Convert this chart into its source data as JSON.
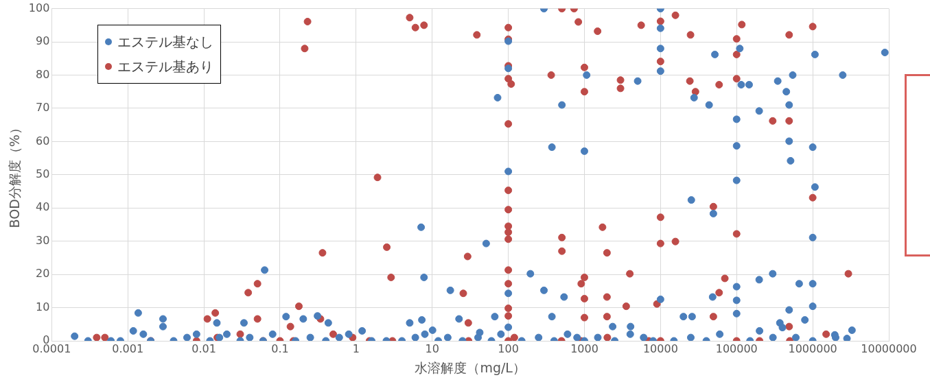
{
  "chart_data": {
    "type": "scatter",
    "xlabel": "水溶解度（mg/L）",
    "ylabel": "BOD分解度（%）",
    "log": "x",
    "grid": true,
    "legend": "top left",
    "marker": "circle",
    "xlim": [
      0.0001,
      10000000
    ],
    "xticks": [
      0.0001,
      0.001,
      0.01,
      0.1,
      1,
      10,
      100,
      1000,
      10000,
      100000,
      1000000,
      10000000
    ],
    "ylim": [
      0,
      100
    ],
    "yticks": [
      0,
      10,
      20,
      30,
      40,
      50,
      60,
      70,
      80,
      90,
      100
    ],
    "series": [
      {
        "name": "エステル基なし",
        "color": "#4a7ebb",
        "x": [
          0.0002,
          0.00118,
          0.00137,
          0.0029,
          0.0029,
          0.0148,
          0.0336,
          0.0628,
          0.12,
          0.202,
          0.311,
          0.431,
          100,
          100,
          100,
          100,
          100,
          294,
          10000,
          10000,
          10000,
          10000,
          1070,
          5010,
          72.3,
          506,
          374,
          1000,
          7.15,
          51.2,
          7.8,
          17.3,
          195,
          294,
          540,
          10000,
          5.06,
          7.31,
          22.5,
          66.4,
          374,
          2350,
          4040,
          10.1,
          42.1,
          51800,
          110000,
          1070000,
          8870000,
          546000,
          2480000,
          115000,
          146000,
          347000,
          450000,
          27600,
          43500,
          490000,
          198000,
          100000,
          100000,
          490000,
          1000000,
          512000,
          100000,
          1070000,
          25400,
          49500,
          1000000,
          198000,
          298000,
          664000,
          1000000,
          100000,
          100000,
          48400,
          1000000,
          490000,
          100000,
          20000,
          26000,
          789000,
          370000,
          3280000,
          1950000,
          2820000,
          0.0003,
          0.0006,
          0.0008,
          0.0016,
          0.002,
          0.004,
          0.006,
          0.008,
          0.012,
          0.016,
          0.02,
          0.03,
          0.04,
          0.06,
          0.08,
          0.16,
          0.25,
          0.4,
          0.6,
          0.8,
          1.2,
          1.6,
          2.5,
          4,
          6,
          8,
          12,
          16,
          25,
          40,
          60,
          80,
          150,
          250,
          400,
          600,
          800,
          1000,
          1500,
          2500,
          4000,
          6000,
          8000,
          15000,
          25000,
          40000,
          60000,
          150000,
          200000,
          300000,
          400000,
          600000,
          1000000,
          2000000
        ],
        "values": [
          1.4,
          3,
          8.4,
          6.6,
          4.3,
          5.4,
          5.4,
          21.3,
          7.3,
          6.6,
          7.5,
          5.4,
          90.2,
          82,
          51,
          14.3,
          4.1,
          100,
          100,
          94.1,
          88,
          81.2,
          80,
          78.2,
          73.2,
          71,
          58.3,
          57.1,
          34.2,
          29.3,
          19.1,
          15.2,
          20.2,
          15.2,
          13.2,
          12.5,
          5.4,
          6.3,
          6.6,
          7.3,
          7.3,
          4.3,
          4.3,
          3.2,
          2.5,
          86.2,
          88,
          86.2,
          86.8,
          80,
          80,
          77.1,
          77.1,
          78.2,
          75,
          73.2,
          71,
          71,
          69.2,
          66.7,
          58.7,
          60.1,
          58.3,
          54.2,
          48.3,
          46.3,
          42.4,
          38.3,
          31.1,
          18.4,
          20.2,
          17.2,
          17.2,
          16.3,
          12.2,
          13.2,
          10.4,
          9.3,
          8.2,
          7.3,
          7.3,
          6.3,
          5.4,
          3.2,
          1.8,
          0.7,
          0,
          0,
          0,
          2,
          0,
          0,
          1,
          2,
          0,
          1,
          2,
          0,
          1,
          0,
          2,
          0,
          1,
          0,
          1,
          2,
          3,
          0,
          0,
          0,
          1,
          2,
          0,
          1,
          0,
          1,
          0,
          2,
          0,
          1,
          0,
          2,
          1,
          0,
          1,
          0,
          2,
          1,
          0,
          0,
          1,
          0,
          2,
          0,
          3,
          1,
          4,
          1,
          0,
          1
        ]
      },
      {
        "name": "エステル基あり",
        "color": "#be4b48",
        "x": [
          0.00039,
          0.0111,
          0.0141,
          0.0382,
          0.0506,
          0.0506,
          0.137,
          0.177,
          0.211,
          0.23,
          0.34,
          0.362,
          5.06,
          6.01,
          7.8,
          38.6,
          100,
          100,
          100,
          100,
          109,
          100,
          100,
          100,
          100,
          100,
          100,
          100,
          100,
          100,
          100,
          506,
          731,
          832,
          1490,
          1000,
          366,
          1000,
          2980,
          2980,
          5570,
          10000,
          10000,
          10000,
          10000,
          8970,
          1.91,
          2.53,
          2.88,
          29.2,
          25.6,
          29.8,
          506,
          506,
          1730,
          1980,
          3950,
          1980,
          3540,
          1000,
          908,
          1000,
          1980,
          1000,
          15700,
          24800,
          117000,
          100000,
          100000,
          100000,
          24300,
          58900,
          28800,
          490000,
          1000000,
          298000,
          490000,
          1000000,
          49500,
          100000,
          15700,
          2940000,
          70000,
          58900,
          49500,
          490000,
          0.0005,
          0.002,
          0.008,
          0.015,
          0.03,
          0.06,
          0.1,
          0.15,
          0.5,
          0.9,
          1.5,
          3,
          30,
          100,
          120,
          500,
          900,
          2000,
          7000,
          10000,
          100000,
          200000,
          500000,
          1500000
        ],
        "values": [
          1,
          6.6,
          8.4,
          14.5,
          17.2,
          6.6,
          4.3,
          10.4,
          88,
          96.1,
          6.6,
          26.5,
          97.3,
          94.3,
          95,
          92.1,
          94.3,
          90.8,
          82.8,
          78.9,
          77.3,
          65.3,
          45.3,
          39.5,
          34.5,
          32.7,
          30.6,
          21.3,
          17.2,
          9.8,
          7.5,
          100,
          100,
          96,
          93.2,
          82.3,
          80,
          75,
          78.5,
          76,
          95,
          96.2,
          84.1,
          37.2,
          29.3,
          11.1,
          49.2,
          28.2,
          19.1,
          25.4,
          14.3,
          5.4,
          31.1,
          27,
          34.2,
          26.5,
          20.2,
          13.2,
          10.4,
          19.1,
          17.2,
          12.7,
          7.3,
          7,
          98,
          92.1,
          95.2,
          90.9,
          86.2,
          78.9,
          78.2,
          77.1,
          75,
          92.1,
          94.6,
          66.2,
          66.2,
          43.1,
          40.4,
          32.2,
          29.9,
          20.2,
          18.8,
          14.5,
          7.3,
          4.3,
          1,
          0,
          0,
          1,
          2,
          0,
          0,
          0,
          2,
          1,
          0,
          0,
          0,
          0,
          1,
          0,
          0,
          1,
          0,
          0,
          0,
          0,
          0,
          2
        ]
      }
    ]
  }
}
